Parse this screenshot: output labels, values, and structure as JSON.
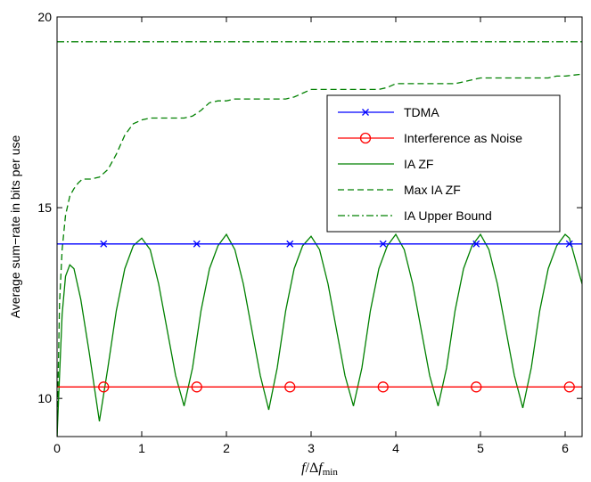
{
  "chart_data": {
    "type": "line",
    "ylabel": "Average sum−rate in bits per use",
    "xlabel": {
      "f": "f",
      "slash_delta": "/Δ",
      "f2": "f",
      "sub": "min"
    },
    "xlim": [
      0,
      6.2
    ],
    "ylim": [
      9,
      20
    ],
    "xticks": [
      0,
      1,
      2,
      3,
      4,
      5,
      6
    ],
    "yticks": [
      10,
      15,
      20
    ],
    "legend_position": "upper-right",
    "series": [
      {
        "name": "TDMA",
        "color": "#0000ff",
        "style": "solid",
        "marker": "x",
        "x": [
          0,
          6.2
        ],
        "y": [
          14.05,
          14.05
        ],
        "marker_x": [
          0.55,
          1.65,
          2.75,
          3.85,
          4.95,
          6.05
        ]
      },
      {
        "name": "Interference as Noise",
        "color": "#ff0000",
        "style": "solid",
        "marker": "o",
        "x": [
          0,
          6.2
        ],
        "y": [
          10.3,
          10.3
        ],
        "marker_x": [
          0.55,
          1.65,
          2.75,
          3.85,
          4.95,
          6.05
        ]
      },
      {
        "name": "IA ZF",
        "color": "#008000",
        "style": "solid",
        "marker": "none",
        "x": [
          0.0,
          0.03,
          0.06,
          0.1,
          0.15,
          0.2,
          0.28,
          0.38,
          0.5,
          0.6,
          0.7,
          0.8,
          0.9,
          1.0,
          1.1,
          1.2,
          1.3,
          1.4,
          1.5,
          1.6,
          1.7,
          1.8,
          1.9,
          2.0,
          2.1,
          2.2,
          2.3,
          2.4,
          2.5,
          2.6,
          2.7,
          2.8,
          2.9,
          3.0,
          3.1,
          3.2,
          3.3,
          3.4,
          3.5,
          3.6,
          3.7,
          3.8,
          3.9,
          4.0,
          4.1,
          4.2,
          4.3,
          4.4,
          4.5,
          4.6,
          4.7,
          4.8,
          4.9,
          5.0,
          5.1,
          5.2,
          5.3,
          5.4,
          5.5,
          5.6,
          5.7,
          5.8,
          5.9,
          6.0,
          6.05,
          6.1,
          6.2
        ],
        "y": [
          9.0,
          10.6,
          12.2,
          13.2,
          13.5,
          13.4,
          12.6,
          11.2,
          9.4,
          10.8,
          12.3,
          13.4,
          14.0,
          14.2,
          13.9,
          13.0,
          11.8,
          10.6,
          9.8,
          10.8,
          12.3,
          13.4,
          14.0,
          14.3,
          13.9,
          13.0,
          11.8,
          10.6,
          9.7,
          10.8,
          12.3,
          13.4,
          14.0,
          14.25,
          13.9,
          13.0,
          11.8,
          10.6,
          9.8,
          10.8,
          12.3,
          13.4,
          14.0,
          14.3,
          13.9,
          13.0,
          11.8,
          10.6,
          9.8,
          10.8,
          12.3,
          13.4,
          14.0,
          14.3,
          13.9,
          13.0,
          11.8,
          10.6,
          9.75,
          10.8,
          12.3,
          13.4,
          14.0,
          14.3,
          14.2,
          13.8,
          13.0
        ]
      },
      {
        "name": "Max IA ZF",
        "color": "#008000",
        "style": "dashed",
        "marker": "none",
        "x": [
          0.0,
          0.03,
          0.06,
          0.1,
          0.15,
          0.2,
          0.25,
          0.3,
          0.4,
          0.5,
          0.6,
          0.7,
          0.8,
          0.9,
          1.0,
          1.1,
          1.3,
          1.5,
          1.6,
          1.7,
          1.8,
          1.9,
          2.0,
          2.1,
          2.3,
          2.5,
          2.7,
          2.8,
          2.9,
          3.0,
          3.2,
          3.5,
          3.8,
          3.9,
          4.0,
          4.2,
          4.5,
          4.7,
          4.8,
          4.9,
          5.0,
          5.2,
          5.5,
          5.8,
          5.9,
          6.0,
          6.2
        ],
        "y": [
          9.0,
          12.5,
          13.9,
          14.8,
          15.3,
          15.5,
          15.65,
          15.75,
          15.75,
          15.8,
          16.0,
          16.4,
          16.9,
          17.2,
          17.3,
          17.35,
          17.35,
          17.35,
          17.4,
          17.55,
          17.75,
          17.8,
          17.8,
          17.85,
          17.85,
          17.85,
          17.85,
          17.9,
          18.0,
          18.1,
          18.1,
          18.1,
          18.1,
          18.15,
          18.25,
          18.25,
          18.25,
          18.25,
          18.3,
          18.35,
          18.4,
          18.4,
          18.4,
          18.4,
          18.45,
          18.45,
          18.5
        ]
      },
      {
        "name": "IA Upper Bound",
        "color": "#008000",
        "style": "dashdot",
        "marker": "none",
        "x": [
          0,
          6.2
        ],
        "y": [
          19.35,
          19.35
        ]
      }
    ]
  }
}
